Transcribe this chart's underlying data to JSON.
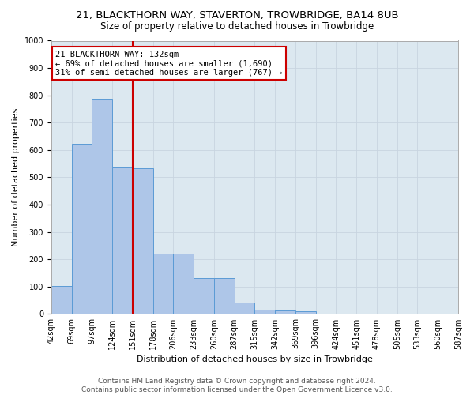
{
  "title1": "21, BLACKTHORN WAY, STAVERTON, TROWBRIDGE, BA14 8UB",
  "title2": "Size of property relative to detached houses in Trowbridge",
  "xlabel": "Distribution of detached houses by size in Trowbridge",
  "ylabel": "Number of detached properties",
  "bar_values": [
    103,
    622,
    787,
    535,
    534,
    220,
    221,
    130,
    132,
    42,
    15,
    14,
    10,
    0,
    0,
    0,
    0,
    0,
    0,
    0
  ],
  "bar_labels": [
    "42sqm",
    "69sqm",
    "97sqm",
    "124sqm",
    "151sqm",
    "178sqm",
    "206sqm",
    "233sqm",
    "260sqm",
    "287sqm",
    "315sqm",
    "342sqm",
    "369sqm",
    "396sqm",
    "424sqm",
    "451sqm",
    "478sqm",
    "505sqm",
    "533sqm",
    "560sqm",
    "587sqm"
  ],
  "bar_color": "#aec6e8",
  "bar_edge_color": "#5b9bd5",
  "property_line_x": 3.5,
  "annotation_text": "21 BLACKTHORN WAY: 132sqm\n← 69% of detached houses are smaller (1,690)\n31% of semi-detached houses are larger (767) →",
  "annotation_box_color": "#ffffff",
  "annotation_box_edge": "#cc0000",
  "vline_color": "#cc0000",
  "ylim": [
    0,
    1000
  ],
  "yticks": [
    0,
    100,
    200,
    300,
    400,
    500,
    600,
    700,
    800,
    900,
    1000
  ],
  "grid_color": "#c8d4e0",
  "bg_color": "#dce8f0",
  "footer_text": "Contains HM Land Registry data © Crown copyright and database right 2024.\nContains public sector information licensed under the Open Government Licence v3.0.",
  "title1_fontsize": 9.5,
  "title2_fontsize": 8.5,
  "xlabel_fontsize": 8,
  "ylabel_fontsize": 8,
  "tick_fontsize": 7,
  "annotation_fontsize": 7.5,
  "footer_fontsize": 6.5
}
